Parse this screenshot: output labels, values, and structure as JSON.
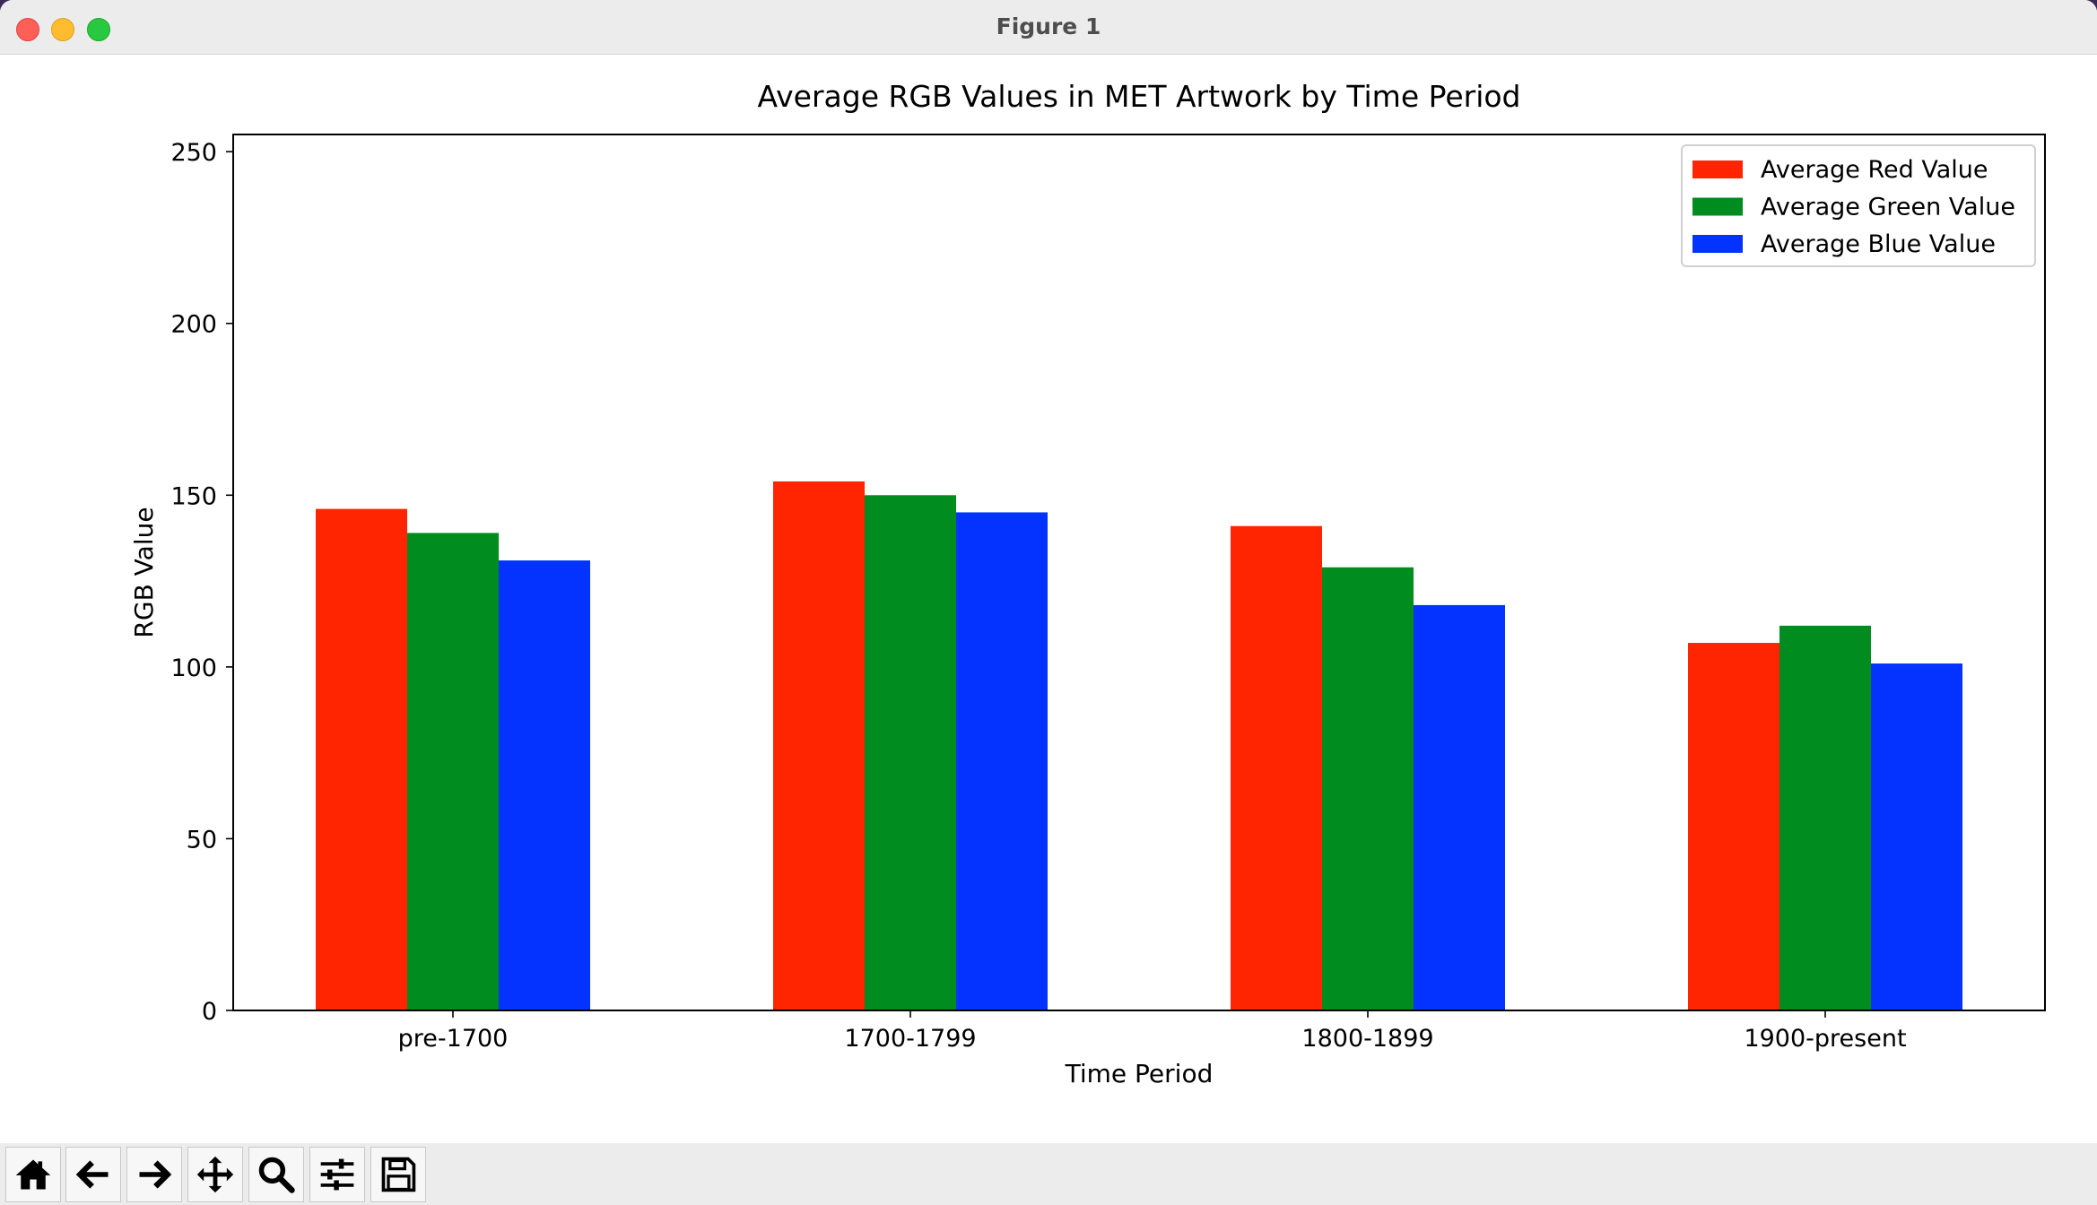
{
  "window": {
    "title": "Figure 1"
  },
  "toolbar": {
    "buttons": [
      {
        "name": "home-icon"
      },
      {
        "name": "back-arrow-icon"
      },
      {
        "name": "forward-arrow-icon"
      },
      {
        "name": "pan-move-icon"
      },
      {
        "name": "zoom-magnifier-icon"
      },
      {
        "name": "configure-subplots-icon"
      },
      {
        "name": "save-floppy-icon"
      }
    ]
  },
  "chart_data": {
    "type": "bar",
    "title": "Average RGB Values in MET Artwork by Time Period",
    "xlabel": "Time Period",
    "ylabel": "RGB Value",
    "ylim": [
      0,
      255
    ],
    "yticks": [
      0,
      50,
      100,
      150,
      200,
      250
    ],
    "categories": [
      "pre-1700",
      "1700-1799",
      "1800-1899",
      "1900-present"
    ],
    "series": [
      {
        "name": "Average Red Value",
        "color": "#ff2500",
        "values": [
          146,
          154,
          141,
          107
        ]
      },
      {
        "name": "Average Green Value",
        "color": "#008c1e",
        "values": [
          139,
          150,
          129,
          112
        ]
      },
      {
        "name": "Average Blue Value",
        "color": "#0433ff",
        "values": [
          131,
          145,
          118,
          101
        ]
      }
    ],
    "legend_position": "top-right",
    "grid": false
  }
}
